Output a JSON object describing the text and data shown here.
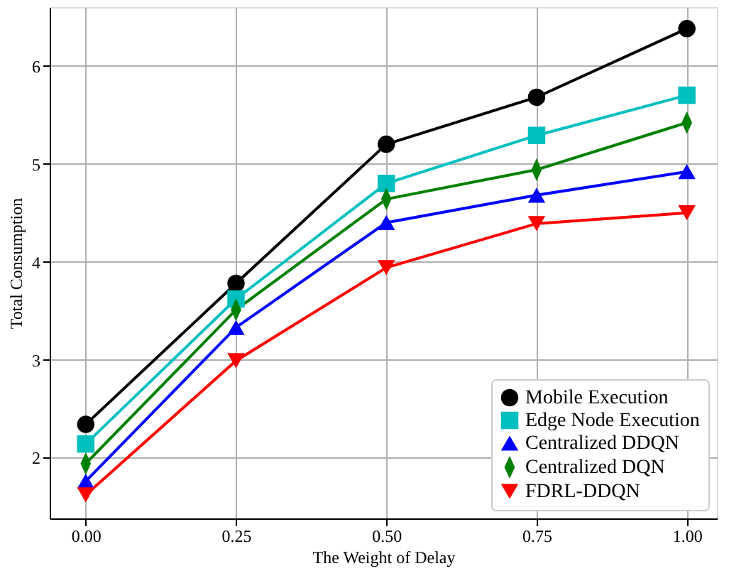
{
  "chart_data": {
    "type": "line",
    "xlabel": "The Weight of Delay",
    "ylabel": "Total Consumption",
    "x": [
      0.0,
      0.25,
      0.5,
      0.75,
      1.0
    ],
    "xlim": [
      -0.06,
      1.05
    ],
    "xticks": [
      {
        "value": 0,
        "label": "0.00"
      },
      {
        "value": 0.25,
        "label": "0.25"
      },
      {
        "value": 0.5,
        "label": "0.50"
      },
      {
        "value": 0.75,
        "label": "0.75"
      },
      {
        "value": 1,
        "label": "1.00"
      }
    ],
    "ylim": [
      1.38,
      6.6
    ],
    "yticks": [
      2,
      3,
      4,
      5,
      6
    ],
    "grid": true,
    "legend": "bottom right",
    "line_style": "solid",
    "series": [
      {
        "name": "Mobile Execution",
        "color": "#000000",
        "marker": "circle",
        "values": [
          2.34,
          3.78,
          5.2,
          5.68,
          6.38
        ]
      },
      {
        "name": "Edge Node Execution",
        "color": "#00bfbf",
        "marker": "square",
        "values": [
          2.14,
          3.62,
          4.8,
          5.29,
          5.7
        ]
      },
      {
        "name": "Centralized DDQN",
        "color": "#0000ff",
        "marker": "triangle",
        "values": [
          1.76,
          3.33,
          4.4,
          4.68,
          4.92
        ]
      },
      {
        "name": "Centralized DQN",
        "color": "#008000",
        "marker": "diamond",
        "values": [
          1.94,
          3.51,
          4.64,
          4.94,
          5.42
        ]
      },
      {
        "name": "FDRL-DDQN",
        "color": "#ff0000",
        "marker": "triangle-down",
        "values": [
          1.62,
          2.99,
          3.94,
          4.39,
          4.5
        ]
      }
    ]
  }
}
